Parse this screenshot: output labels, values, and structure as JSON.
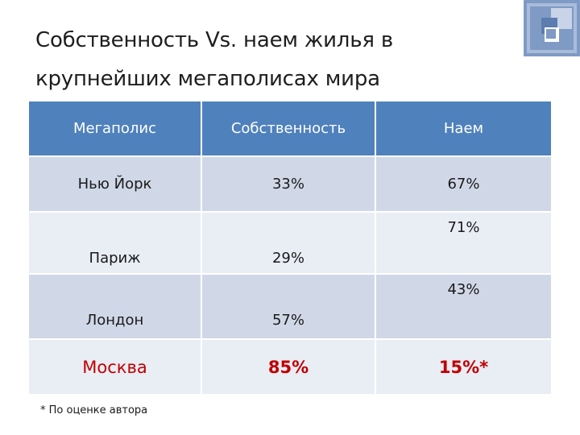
{
  "title": {
    "line1": "Собственность Vs. наем жилья в",
    "line2": "крупнейших мегаполисах мира"
  },
  "table": {
    "headers": [
      "Мегаполис",
      "Собственность",
      "Наем"
    ],
    "rows": [
      {
        "city": "Нью Йорк",
        "ownership": "33%",
        "rent": "67%"
      },
      {
        "city": "Париж",
        "ownership": "29%",
        "rent": "71%"
      },
      {
        "city": "Лондон",
        "ownership": "57%",
        "rent": "43%"
      },
      {
        "city": "Москва",
        "ownership": "85%",
        "rent": "15%*"
      }
    ]
  },
  "footnote": "* По оценке автора",
  "colors": {
    "header_bg": "#4f81bd",
    "row_dark": "#d0d8e8",
    "row_light": "#e9edf4",
    "highlight": "#c00000",
    "logo_blue": "#7f9ac4",
    "logo_light": "#c9d4e8"
  },
  "logo_icon": "squares-logo-icon"
}
